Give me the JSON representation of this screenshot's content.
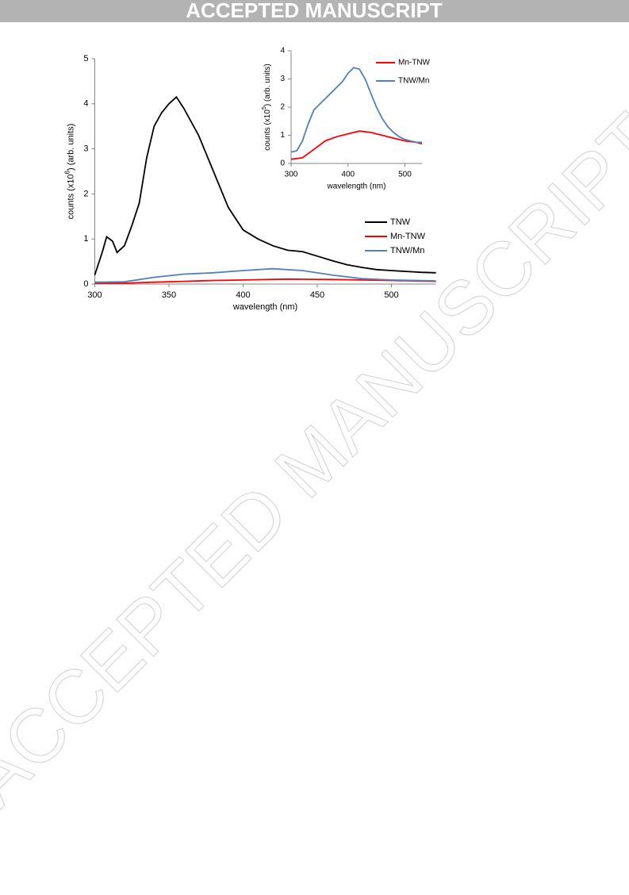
{
  "header": {
    "banner": "ACCEPTED MANUSCRIPT"
  },
  "watermark": "ACCEPTED MANUSCRIPT",
  "chart_data": [
    {
      "type": "line",
      "xlabel": "wavelength (nm)",
      "ylabel": {
        "pre": "counts (x10",
        "sup": "6",
        "post": ") (arb. units)"
      },
      "xlim": [
        300,
        530
      ],
      "xticks": [
        300,
        350,
        400,
        450,
        500
      ],
      "ylim": [
        0,
        5
      ],
      "yticks": [
        0,
        1,
        2,
        3,
        4,
        5
      ],
      "legend": "right",
      "series": [
        {
          "name": "TNW",
          "color": "#000000",
          "x": [
            300,
            305,
            308,
            312,
            315,
            320,
            325,
            330,
            335,
            340,
            345,
            350,
            355,
            360,
            370,
            380,
            390,
            400,
            410,
            420,
            430,
            440,
            450,
            460,
            470,
            480,
            490,
            500,
            510,
            520,
            530
          ],
          "values": [
            0.2,
            0.7,
            1.05,
            0.95,
            0.7,
            0.85,
            1.3,
            1.8,
            2.8,
            3.5,
            3.8,
            4.0,
            4.15,
            3.9,
            3.3,
            2.5,
            1.7,
            1.2,
            1.0,
            0.85,
            0.75,
            0.72,
            0.62,
            0.52,
            0.43,
            0.37,
            0.32,
            0.3,
            0.28,
            0.26,
            0.25
          ]
        },
        {
          "name": "Mn-TNW",
          "color": "#ff0000",
          "x": [
            300,
            320,
            340,
            360,
            380,
            400,
            430,
            460,
            480,
            500,
            530
          ],
          "values": [
            0.02,
            0.02,
            0.04,
            0.06,
            0.08,
            0.09,
            0.11,
            0.1,
            0.09,
            0.08,
            0.06
          ]
        },
        {
          "name": "TNW/Mn",
          "color": "#4f81bd",
          "x": [
            300,
            320,
            340,
            360,
            380,
            400,
            420,
            440,
            460,
            480,
            500,
            530
          ],
          "values": [
            0.04,
            0.05,
            0.15,
            0.22,
            0.25,
            0.3,
            0.34,
            0.3,
            0.2,
            0.12,
            0.09,
            0.07
          ]
        }
      ]
    },
    {
      "type": "line",
      "xlabel": "wavelength (nm)",
      "ylabel": {
        "pre": "counts (x10",
        "sup": "5",
        "post": ") (arb. units)"
      },
      "xlim": [
        300,
        530
      ],
      "xticks": [
        300,
        400,
        500
      ],
      "ylim": [
        0,
        4
      ],
      "yticks": [
        0,
        1,
        2,
        3,
        4
      ],
      "legend": "upper right",
      "series": [
        {
          "name": "Mn-TNW",
          "color": "#ff0000",
          "x": [
            300,
            320,
            340,
            360,
            380,
            400,
            420,
            440,
            460,
            480,
            500,
            520,
            530
          ],
          "values": [
            0.15,
            0.2,
            0.5,
            0.8,
            0.95,
            1.05,
            1.15,
            1.1,
            1.0,
            0.9,
            0.8,
            0.75,
            0.7
          ]
        },
        {
          "name": "TNW/Mn",
          "color": "#4f81bd",
          "x": [
            300,
            310,
            320,
            330,
            340,
            350,
            360,
            370,
            380,
            390,
            400,
            410,
            420,
            430,
            440,
            450,
            460,
            470,
            480,
            490,
            500,
            510,
            520,
            530
          ],
          "values": [
            0.4,
            0.45,
            0.8,
            1.4,
            1.9,
            2.1,
            2.3,
            2.5,
            2.7,
            2.9,
            3.2,
            3.4,
            3.35,
            3.0,
            2.5,
            2.0,
            1.6,
            1.3,
            1.1,
            0.95,
            0.85,
            0.8,
            0.75,
            0.75
          ]
        }
      ]
    }
  ]
}
